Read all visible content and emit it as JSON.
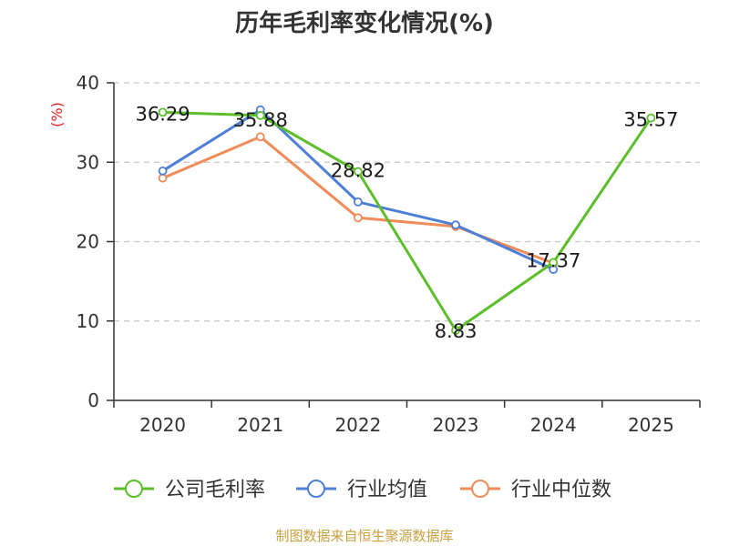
{
  "chart_data": {
    "type": "line",
    "title": "历年毛利率变化情况(%)",
    "ylabel": "(%)",
    "xlabel": "",
    "categories": [
      "2020",
      "2021",
      "2022",
      "2023",
      "2024",
      "2025"
    ],
    "ylim": [
      0,
      40
    ],
    "yticks": [
      0,
      10,
      20,
      30,
      40
    ],
    "grid": true,
    "legend_position": "bottom",
    "series": [
      {
        "name": "公司毛利率",
        "color": "#5cbf2a",
        "values": [
          36.29,
          35.88,
          28.82,
          8.83,
          17.37,
          35.57
        ],
        "labels": [
          "36.29",
          "35.88",
          "28.82",
          "8.83",
          "17.37",
          "35.57"
        ]
      },
      {
        "name": "行业均值",
        "color": "#4e7fd8",
        "values": [
          28.9,
          36.6,
          25.0,
          22.1,
          16.5,
          null
        ]
      },
      {
        "name": "行业中位数",
        "color": "#f08c5a",
        "values": [
          28.0,
          33.2,
          23.0,
          21.9,
          17.3,
          null
        ]
      }
    ],
    "source": "制图数据来自恒生聚源数据库"
  }
}
